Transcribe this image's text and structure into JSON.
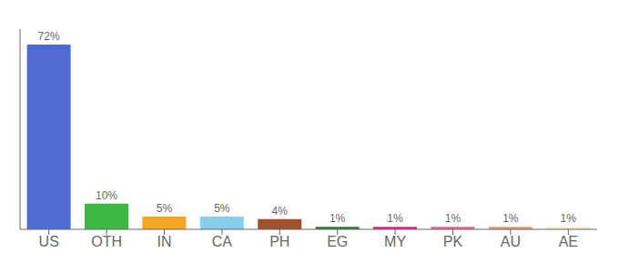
{
  "chart_data": {
    "type": "bar",
    "categories": [
      "US",
      "OTH",
      "IN",
      "CA",
      "PH",
      "EG",
      "MY",
      "PK",
      "AU",
      "AE"
    ],
    "values": [
      72,
      10,
      5,
      5,
      4,
      1,
      1,
      1,
      1,
      1
    ],
    "value_labels": [
      "72%",
      "10%",
      "5%",
      "5%",
      "4%",
      "1%",
      "1%",
      "1%",
      "1%",
      "1%"
    ],
    "colors": [
      "#4F6CD4",
      "#3CB843",
      "#F5A623",
      "#87CEEB",
      "#A0522D",
      "#2E7D32",
      "#E91E8C",
      "#F06090",
      "#E8977A",
      "#F5F0C0"
    ],
    "ylim": [
      0,
      78
    ],
    "data_labels": true,
    "tick_labels": "x",
    "grid": false
  }
}
